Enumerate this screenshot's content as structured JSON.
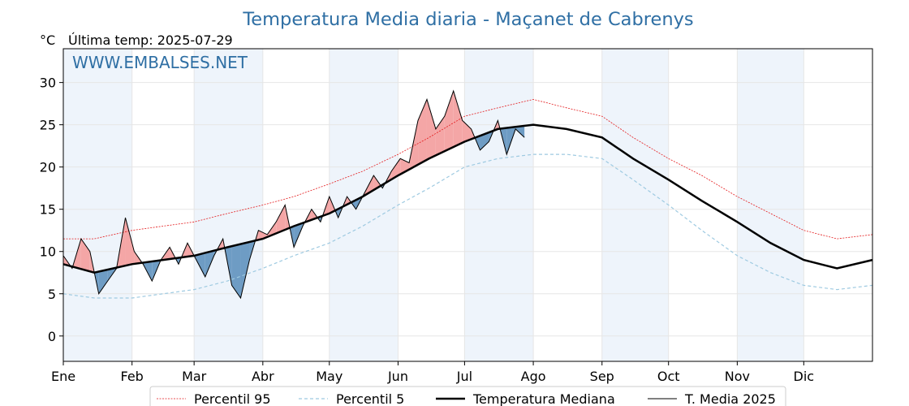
{
  "chart_data": {
    "type": "line",
    "title": "Temperatura Media diaria - Maçanet de Cabrenys",
    "unit_label": "°C",
    "subtitle": "Última temp: 2025-07-29",
    "watermark": "WWW.EMBALSES.NET",
    "ylim": [
      -3,
      34
    ],
    "xlim": [
      1,
      366
    ],
    "grid": true,
    "legend_position": "bottom-center",
    "y_ticks": [
      {
        "value": 0,
        "label": "0"
      },
      {
        "value": 5,
        "label": "5"
      },
      {
        "value": 10,
        "label": "10"
      },
      {
        "value": 15,
        "label": "15"
      },
      {
        "value": 20,
        "label": "20"
      },
      {
        "value": 25,
        "label": "25"
      },
      {
        "value": 30,
        "label": "30"
      }
    ],
    "x_ticks": [
      {
        "day": 1,
        "label": "Ene"
      },
      {
        "day": 32,
        "label": "Feb"
      },
      {
        "day": 60,
        "label": "Mar"
      },
      {
        "day": 91,
        "label": "Abr"
      },
      {
        "day": 121,
        "label": "May"
      },
      {
        "day": 152,
        "label": "Jun"
      },
      {
        "day": 182,
        "label": "Jul"
      },
      {
        "day": 213,
        "label": "Ago"
      },
      {
        "day": 244,
        "label": "Sep"
      },
      {
        "day": 274,
        "label": "Oct"
      },
      {
        "day": 305,
        "label": "Nov"
      },
      {
        "day": 335,
        "label": "Dic"
      }
    ],
    "shaded_month_bands": [
      [
        1,
        32
      ],
      [
        60,
        91
      ],
      [
        121,
        152
      ],
      [
        182,
        213
      ],
      [
        244,
        274
      ],
      [
        305,
        335
      ]
    ],
    "colors": {
      "p95": "#e41a1c",
      "p5": "#9ecae1",
      "median": "#000000",
      "current": "#000000",
      "above_fill": "#f4a6a6",
      "below_fill": "#6e9cc4",
      "title": "#2f6fa4",
      "band": "#eef4fb"
    },
    "series": [
      {
        "name": "Percentil 95",
        "style": "dotted-red",
        "x": [
          1,
          15,
          32,
          46,
          60,
          75,
          91,
          105,
          121,
          136,
          152,
          166,
          182,
          197,
          213,
          228,
          244,
          258,
          274,
          289,
          305,
          320,
          335,
          350,
          366
        ],
        "y": [
          11.5,
          11.5,
          12.5,
          13.0,
          13.5,
          14.5,
          15.5,
          16.5,
          18.0,
          19.5,
          21.5,
          23.5,
          26.0,
          27.0,
          28.0,
          27.0,
          26.0,
          23.5,
          21.0,
          19.0,
          16.5,
          14.5,
          12.5,
          11.5,
          12.0
        ]
      },
      {
        "name": "Percentil 5",
        "style": "dashed-lightblue",
        "x": [
          1,
          15,
          32,
          46,
          60,
          75,
          91,
          105,
          121,
          136,
          152,
          166,
          182,
          197,
          213,
          228,
          244,
          258,
          274,
          289,
          305,
          320,
          335,
          350,
          366
        ],
        "y": [
          5.0,
          4.5,
          4.5,
          5.0,
          5.5,
          6.5,
          8.0,
          9.5,
          11.0,
          13.0,
          15.5,
          17.5,
          20.0,
          21.0,
          21.5,
          21.5,
          21.0,
          18.5,
          15.5,
          12.5,
          9.5,
          7.5,
          6.0,
          5.5,
          6.0
        ]
      },
      {
        "name": "Temperatura Mediana",
        "style": "thick-black",
        "x": [
          1,
          15,
          32,
          46,
          60,
          75,
          91,
          105,
          121,
          136,
          152,
          166,
          182,
          197,
          213,
          228,
          244,
          258,
          274,
          289,
          305,
          320,
          335,
          350,
          366
        ],
        "y": [
          8.5,
          7.5,
          8.5,
          9.0,
          9.5,
          10.5,
          11.5,
          13.0,
          14.5,
          16.5,
          19.0,
          21.0,
          23.0,
          24.5,
          25.0,
          24.5,
          23.5,
          21.0,
          18.5,
          16.0,
          13.5,
          11.0,
          9.0,
          8.0,
          9.0
        ]
      },
      {
        "name": "T. Media 2025",
        "style": "thin-black",
        "x": [
          1,
          5,
          9,
          13,
          17,
          21,
          25,
          29,
          33,
          37,
          41,
          45,
          49,
          53,
          57,
          61,
          65,
          69,
          73,
          77,
          81,
          85,
          89,
          93,
          97,
          101,
          105,
          109,
          113,
          117,
          121,
          125,
          129,
          133,
          137,
          141,
          145,
          149,
          153,
          157,
          161,
          165,
          169,
          173,
          177,
          181,
          185,
          189,
          193,
          197,
          201,
          205,
          209
        ],
        "y": [
          9.5,
          8.0,
          11.5,
          10.0,
          5.0,
          6.5,
          8.0,
          14.0,
          10.0,
          8.5,
          6.5,
          9.0,
          10.5,
          8.5,
          11.0,
          9.0,
          7.0,
          9.5,
          11.5,
          6.0,
          4.5,
          9.0,
          12.5,
          12.0,
          13.5,
          15.5,
          10.5,
          13.0,
          15.0,
          13.5,
          16.5,
          14.0,
          16.5,
          15.0,
          17.0,
          19.0,
          17.5,
          19.5,
          21.0,
          20.5,
          25.5,
          28.0,
          24.5,
          26.0,
          29.0,
          25.5,
          24.5,
          22.0,
          23.0,
          25.5,
          21.5,
          24.5,
          23.5
        ]
      }
    ]
  }
}
